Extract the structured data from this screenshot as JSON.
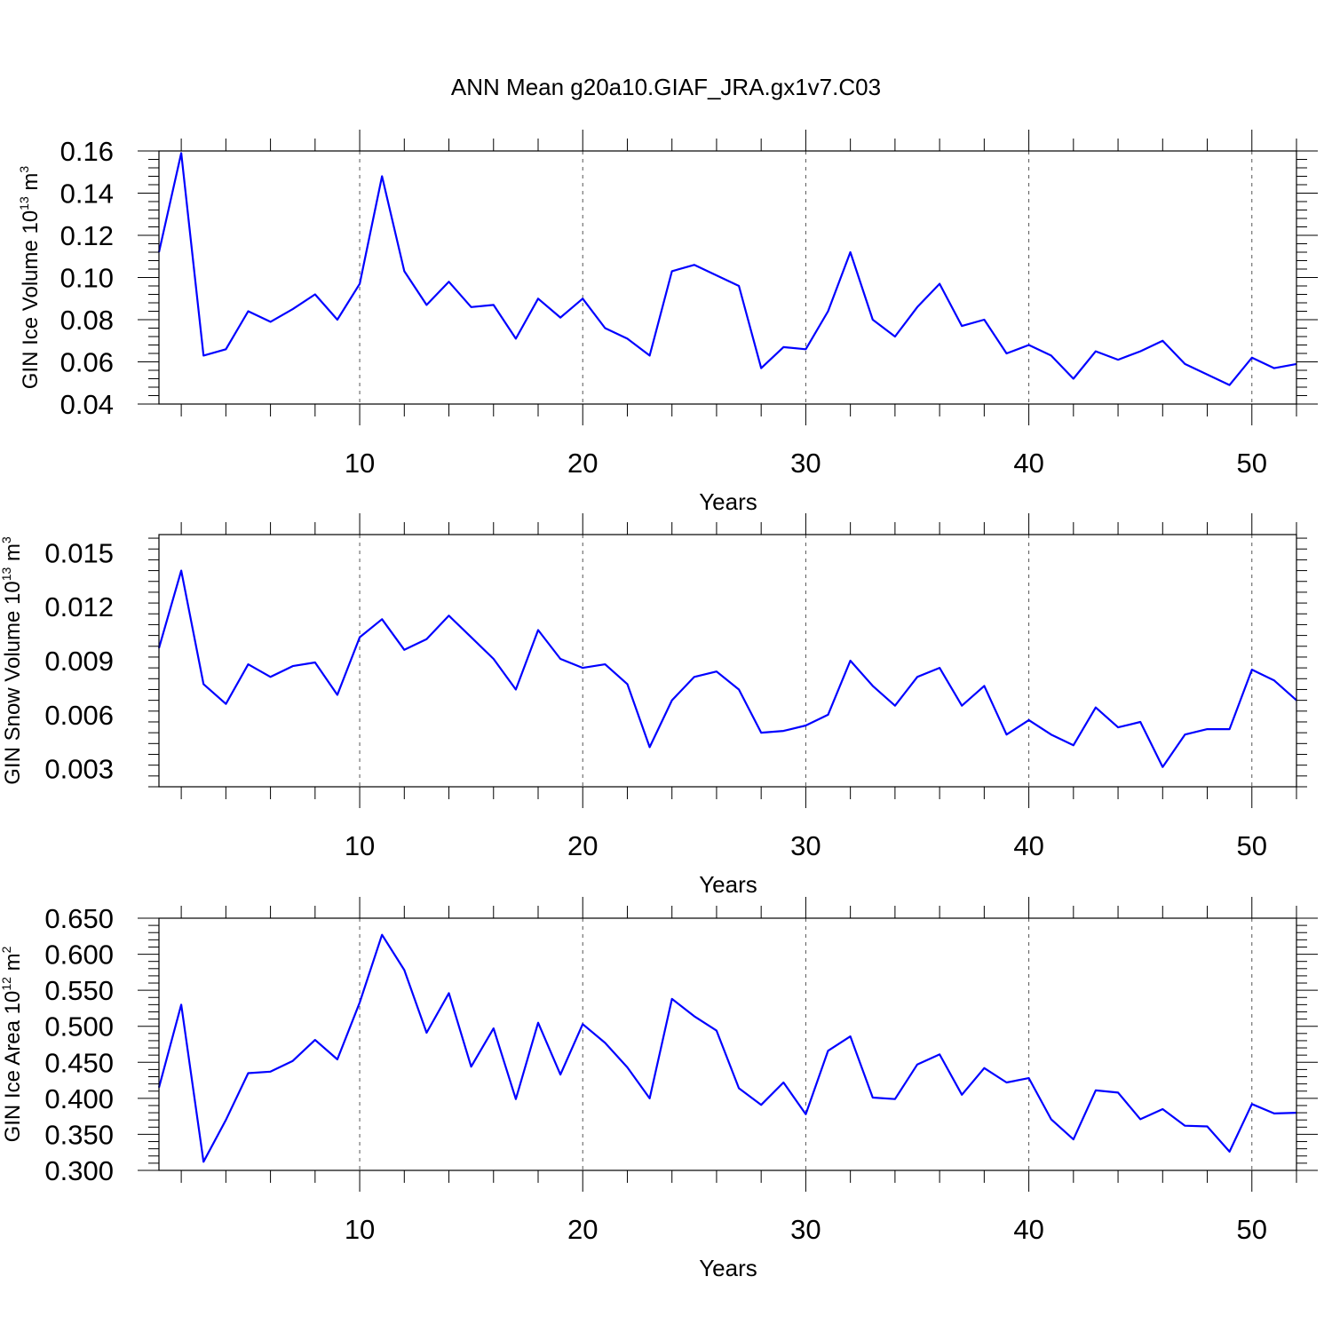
{
  "title": "ANN Mean g20a10.GIAF_JRA.gx1v7.C03",
  "colors": {
    "line": "#0000ff",
    "axis": "#000000",
    "grid": "#555555",
    "background": "#ffffff"
  },
  "chart_data": [
    {
      "type": "line",
      "ylabel": {
        "text": "GIN Ice Volume 10",
        "exponent": "13",
        "unit": "m",
        "unit_exponent": "3"
      },
      "xlabel": "Years",
      "xlim": [
        1,
        52
      ],
      "ylim": [
        0.04,
        0.16
      ],
      "x_ticks": [
        10,
        20,
        30,
        40,
        50
      ],
      "y_ticks": [
        "0.04",
        "0.06",
        "0.08",
        "0.10",
        "0.12",
        "0.14",
        "0.16"
      ],
      "grid": "vertical dashed at major x ticks",
      "series": [
        {
          "x": [
            1,
            2,
            3,
            4,
            5,
            6,
            7,
            8,
            9,
            10,
            11,
            12,
            13,
            14,
            15,
            16,
            17,
            18,
            19,
            20,
            21,
            22,
            23,
            24,
            25,
            26,
            27,
            28,
            29,
            30,
            31,
            32,
            33,
            34,
            35,
            36,
            37,
            38,
            39,
            40,
            41,
            42,
            43,
            44,
            45,
            46,
            47,
            48,
            49,
            50,
            51,
            52
          ],
          "values": [
            0.112,
            0.159,
            0.063,
            0.066,
            0.084,
            0.079,
            0.085,
            0.092,
            0.08,
            0.097,
            0.148,
            0.103,
            0.087,
            0.098,
            0.086,
            0.087,
            0.071,
            0.09,
            0.081,
            0.09,
            0.076,
            0.071,
            0.063,
            0.103,
            0.106,
            0.101,
            0.096,
            0.057,
            0.067,
            0.066,
            0.084,
            0.112,
            0.08,
            0.072,
            0.086,
            0.097,
            0.077,
            0.08,
            0.064,
            0.068,
            0.063,
            0.052,
            0.065,
            0.061,
            0.065,
            0.07,
            0.059,
            0.054,
            0.049,
            0.062,
            0.057,
            0.059
          ]
        }
      ]
    },
    {
      "type": "line",
      "ylabel": {
        "text": "GIN Snow Volume 10",
        "exponent": "13",
        "unit": "m",
        "unit_exponent": "3"
      },
      "xlabel": "Years",
      "xlim": [
        1,
        52
      ],
      "ylim": [
        0.002,
        0.016
      ],
      "x_ticks": [
        10,
        20,
        30,
        40,
        50
      ],
      "y_ticks": [
        "0.003",
        "0.006",
        "0.009",
        "0.012",
        "0.015"
      ],
      "grid": "vertical dashed at major x ticks",
      "series": [
        {
          "x": [
            1,
            2,
            3,
            4,
            5,
            6,
            7,
            8,
            9,
            10,
            11,
            12,
            13,
            14,
            15,
            16,
            17,
            18,
            19,
            20,
            21,
            22,
            23,
            24,
            25,
            26,
            27,
            28,
            29,
            30,
            31,
            32,
            33,
            34,
            35,
            36,
            37,
            38,
            39,
            40,
            41,
            42,
            43,
            44,
            45,
            46,
            47,
            48,
            49,
            50,
            51,
            52
          ],
          "values": [
            0.0097,
            0.014,
            0.0077,
            0.0066,
            0.0088,
            0.0081,
            0.0087,
            0.0089,
            0.0071,
            0.0103,
            0.0113,
            0.0096,
            0.0102,
            0.0115,
            0.0103,
            0.0091,
            0.0074,
            0.0107,
            0.0091,
            0.0086,
            0.0088,
            0.0077,
            0.0042,
            0.0068,
            0.0081,
            0.0084,
            0.0074,
            0.005,
            0.0051,
            0.0054,
            0.006,
            0.009,
            0.0076,
            0.0065,
            0.0081,
            0.0086,
            0.0065,
            0.0076,
            0.0049,
            0.0057,
            0.0049,
            0.0043,
            0.0064,
            0.0053,
            0.0056,
            0.0031,
            0.0049,
            0.0052,
            0.0052,
            0.0085,
            0.0079,
            0.0068
          ]
        }
      ]
    },
    {
      "type": "line",
      "ylabel": {
        "text": "GIN Ice Area 10",
        "exponent": "12",
        "unit": "m",
        "unit_exponent": "2"
      },
      "xlabel": "Years",
      "xlim": [
        1,
        52
      ],
      "ylim": [
        0.3,
        0.65
      ],
      "x_ticks": [
        10,
        20,
        30,
        40,
        50
      ],
      "y_ticks": [
        "0.300",
        "0.350",
        "0.400",
        "0.450",
        "0.500",
        "0.550",
        "0.600",
        "0.650"
      ],
      "grid": "vertical dashed at major x ticks",
      "series": [
        {
          "x": [
            1,
            2,
            3,
            4,
            5,
            6,
            7,
            8,
            9,
            10,
            11,
            12,
            13,
            14,
            15,
            16,
            17,
            18,
            19,
            20,
            21,
            22,
            23,
            24,
            25,
            26,
            27,
            28,
            29,
            30,
            31,
            32,
            33,
            34,
            35,
            36,
            37,
            38,
            39,
            40,
            41,
            42,
            43,
            44,
            45,
            46,
            47,
            48,
            49,
            50,
            51,
            52
          ],
          "values": [
            0.415,
            0.53,
            0.312,
            0.37,
            0.435,
            0.437,
            0.452,
            0.481,
            0.454,
            0.533,
            0.627,
            0.578,
            0.491,
            0.546,
            0.444,
            0.497,
            0.399,
            0.505,
            0.433,
            0.503,
            0.477,
            0.443,
            0.4,
            0.538,
            0.514,
            0.494,
            0.414,
            0.391,
            0.422,
            0.378,
            0.466,
            0.486,
            0.401,
            0.399,
            0.447,
            0.461,
            0.405,
            0.442,
            0.422,
            0.428,
            0.371,
            0.343,
            0.411,
            0.408,
            0.371,
            0.385,
            0.362,
            0.361,
            0.326,
            0.392,
            0.379,
            0.38
          ]
        }
      ]
    }
  ]
}
